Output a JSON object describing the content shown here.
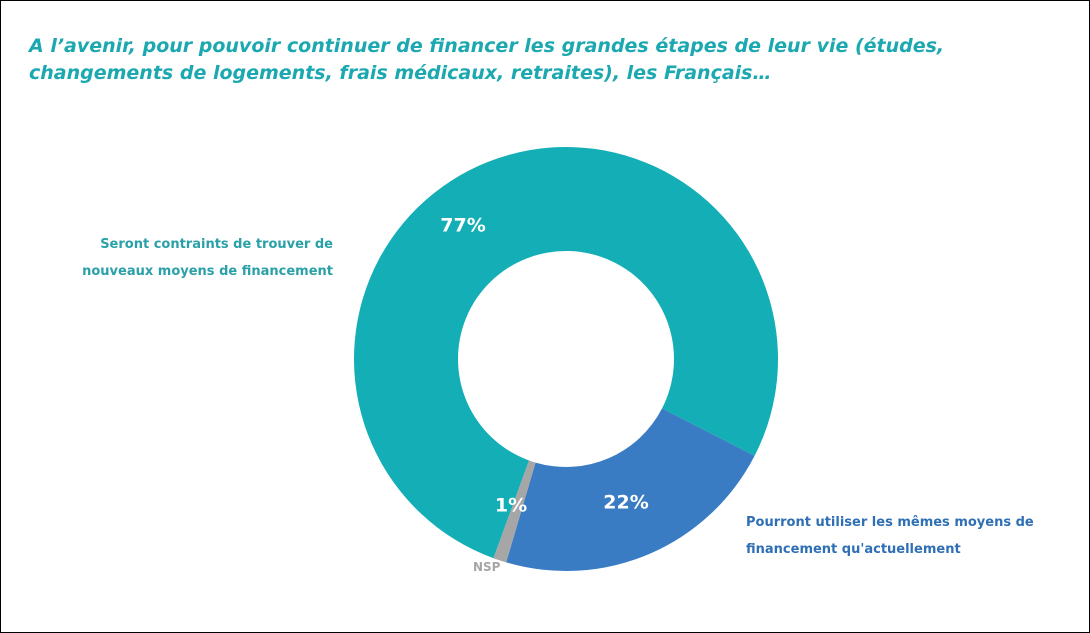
{
  "chart_data": {
    "type": "donut",
    "title": "A l’avenir, pour pouvoir continuer de financer les grandes étapes de leur vie (études, changements de logements, frais médicaux, retraites), les Français…",
    "categories": [
      "Seront contraints de trouver de nouveaux moyens de financement",
      "Pourront utiliser les mêmes moyens de financement qu'actuellement",
      "NSP"
    ],
    "values": [
      77,
      22,
      1
    ],
    "value_labels": [
      "77%",
      "22%",
      "1%"
    ],
    "colors": [
      "#14aeb6",
      "#3a7cc4",
      "#a6a6a6"
    ]
  }
}
